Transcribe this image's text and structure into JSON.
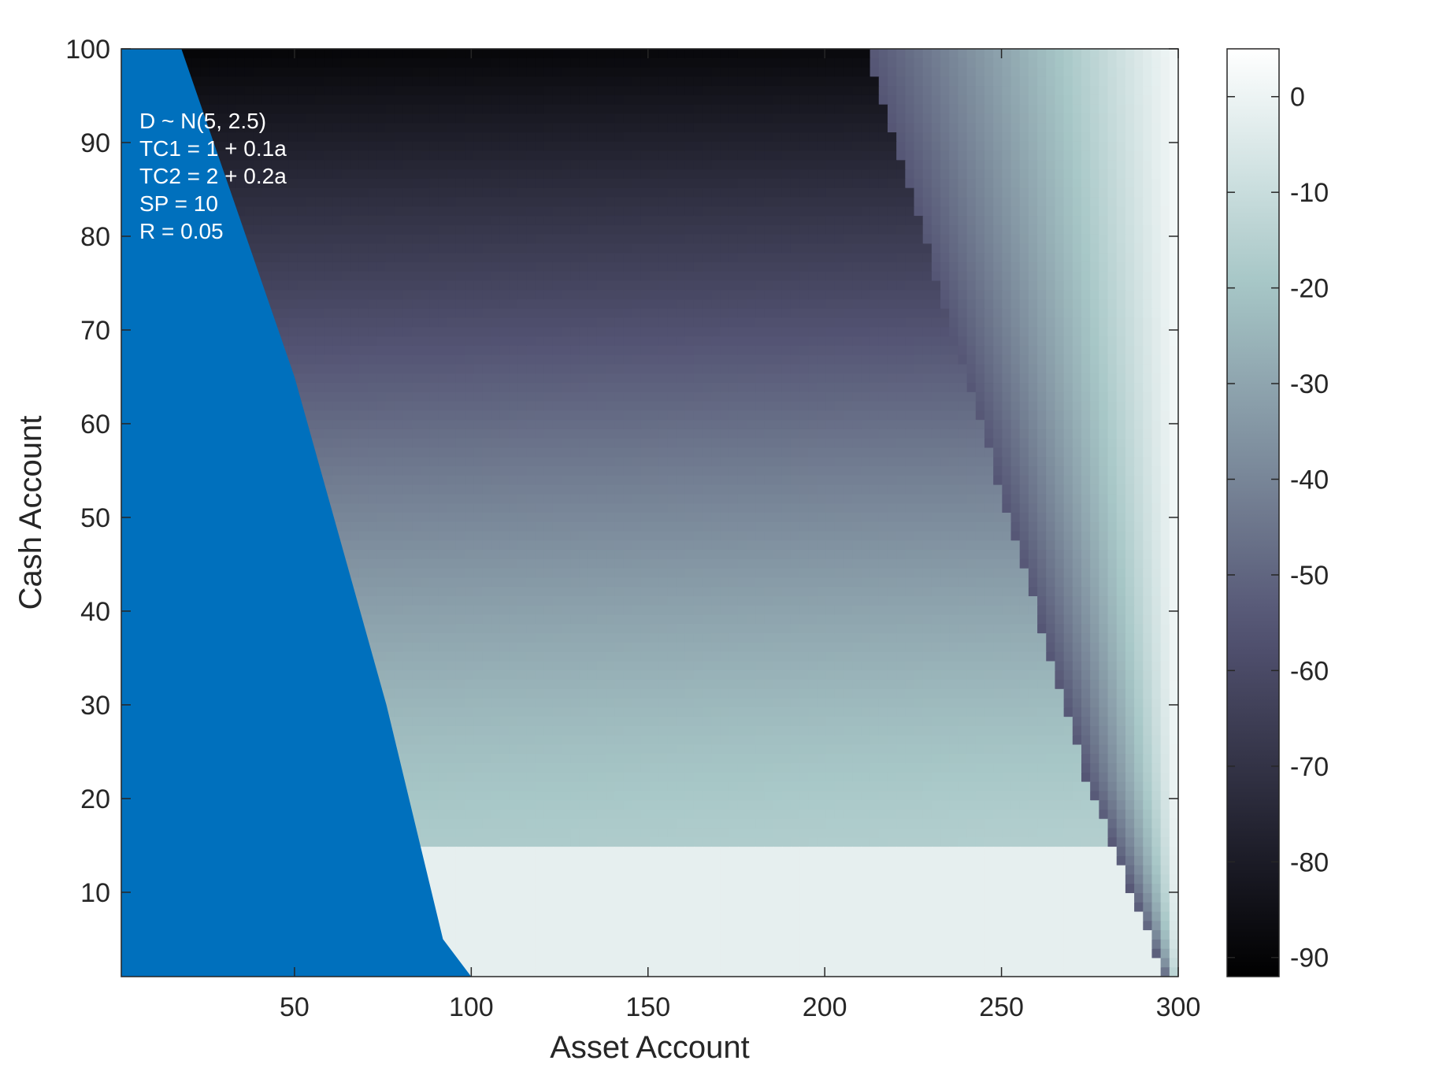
{
  "chart_data": {
    "type": "heatmap",
    "title": "",
    "xlabel": "Asset Account",
    "ylabel": "Cash Account",
    "xlim": [
      1,
      300
    ],
    "ylim": [
      1,
      100
    ],
    "xticks": [
      50,
      100,
      150,
      200,
      250,
      300
    ],
    "yticks": [
      10,
      20,
      30,
      40,
      50,
      60,
      70,
      80,
      90,
      100
    ],
    "annotations": [
      "D ~ N(5, 2.5)",
      "TC1 = 1 + 0.1a",
      "TC2 = 2 + 0.2a",
      "SP = 10",
      "R = 0.05"
    ],
    "colorbar": {
      "range": [
        -92,
        5
      ],
      "ticks": [
        0,
        -10,
        -20,
        -30,
        -40,
        -50,
        -60,
        -70,
        -80,
        -90
      ],
      "colormap": "bone",
      "location": "right"
    },
    "masked_region": {
      "description_color": "#0070BD",
      "boundary": [
        {
          "x": 18,
          "y": 100
        },
        {
          "x": 50,
          "y": 65
        },
        {
          "x": 76,
          "y": 30
        },
        {
          "x": 92,
          "y": 5
        },
        {
          "x": 100,
          "y": 1
        }
      ]
    },
    "near_zero_plateau": {
      "value": -2,
      "upper_cash": 15
    },
    "right_boundary": [
      {
        "x": 212,
        "y": 100
      },
      {
        "x": 248,
        "y": 55
      },
      {
        "x": 274,
        "y": 22
      },
      {
        "x": 296,
        "y": 1
      }
    ],
    "value_samples": [
      {
        "x": 150,
        "y": 100,
        "value": -88
      },
      {
        "x": 150,
        "y": 70,
        "value": -52
      },
      {
        "x": 150,
        "y": 40,
        "value": -35
      },
      {
        "x": 150,
        "y": 22,
        "value": -20
      },
      {
        "x": 150,
        "y": 10,
        "value": -2
      },
      {
        "x": 260,
        "y": 60,
        "value": -45
      },
      {
        "x": 290,
        "y": 60,
        "value": -15
      },
      {
        "x": 300,
        "y": 60,
        "value": -3
      }
    ],
    "grid": false
  }
}
